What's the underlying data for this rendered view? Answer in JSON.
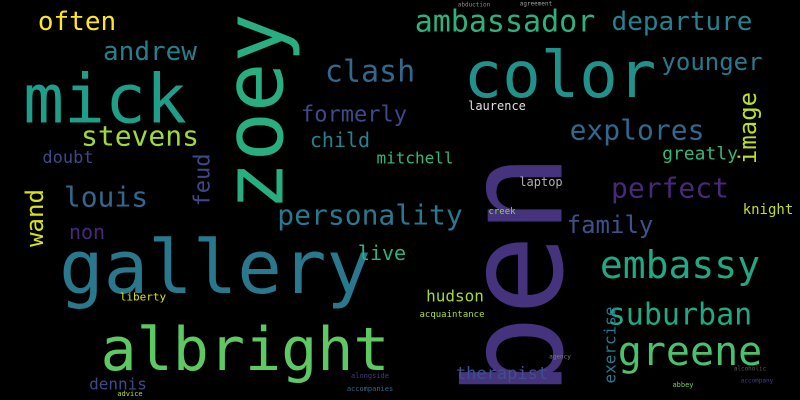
{
  "words": [
    {
      "text": "ben",
      "color": "#46337e"
    },
    {
      "text": "gallery",
      "color": "#2a788e"
    },
    {
      "text": "color",
      "color": "#21918c"
    },
    {
      "text": "mick",
      "color": "#1f9e89"
    },
    {
      "text": "zoey",
      "color": "#28ae80"
    },
    {
      "text": "albright",
      "color": "#5ec962"
    },
    {
      "text": "ambassador",
      "color": "#2db27d"
    },
    {
      "text": "greene",
      "color": "#4ac16d"
    },
    {
      "text": "embassy",
      "color": "#22a884"
    },
    {
      "text": "suburban",
      "color": "#22a884"
    },
    {
      "text": "personality",
      "color": "#2a788e"
    },
    {
      "text": "explores",
      "color": "#31688e"
    },
    {
      "text": "clash",
      "color": "#31688e"
    },
    {
      "text": "perfect",
      "color": "#482878"
    },
    {
      "text": "departure",
      "color": "#26828e"
    },
    {
      "text": "younger",
      "color": "#2a788e"
    },
    {
      "text": "stevens",
      "color": "#a0da39"
    },
    {
      "text": "andrew",
      "color": "#277f8e"
    },
    {
      "text": "often",
      "color": "#fde725"
    },
    {
      "text": "louis",
      "color": "#31688e"
    },
    {
      "text": "formerly",
      "color": "#3e4989"
    },
    {
      "text": "child",
      "color": "#26828e"
    },
    {
      "text": "family",
      "color": "#3b528b"
    },
    {
      "text": "image",
      "color": "#bddf26"
    },
    {
      "text": "wand",
      "color": "#d8e219"
    },
    {
      "text": "feud",
      "color": "#3e4989"
    },
    {
      "text": "greatly",
      "color": "#35b779"
    },
    {
      "text": "doubt",
      "color": "#3e4989"
    },
    {
      "text": "non",
      "color": "#482878"
    },
    {
      "text": "mitchell",
      "color": "#35b779"
    },
    {
      "text": "live",
      "color": "#2db27d"
    },
    {
      "text": "hudson",
      "color": "#a0da39"
    },
    {
      "text": "laurence",
      "color": "#e0e0e0"
    },
    {
      "text": "therapist",
      "color": "#3b528b"
    },
    {
      "text": "exercise",
      "color": "#2a788e"
    },
    {
      "text": "knight",
      "color": "#c2df23"
    },
    {
      "text": "dennis",
      "color": "#3e4989"
    },
    {
      "text": "liberty",
      "color": "#d8e219"
    },
    {
      "text": "laptop",
      "color": "#b0b0b0"
    },
    {
      "text": "creek",
      "color": "#8fd744"
    },
    {
      "text": "acquaintance",
      "color": "#addc30"
    },
    {
      "text": "accompanies",
      "color": "#31688e"
    },
    {
      "text": "alongside",
      "color": "#443983"
    },
    {
      "text": "agreement",
      "color": "#9b9b9b"
    },
    {
      "text": "abduction",
      "color": "#8a8a8a"
    },
    {
      "text": "advice",
      "color": "#b5de2b"
    },
    {
      "text": "alcoholic",
      "color": "#5a5a5a"
    },
    {
      "text": "abbey",
      "color": "#6ece58"
    },
    {
      "text": "accompany",
      "color": "#433e85"
    },
    {
      "text": "agency",
      "color": "#7a7a7a"
    }
  ]
}
